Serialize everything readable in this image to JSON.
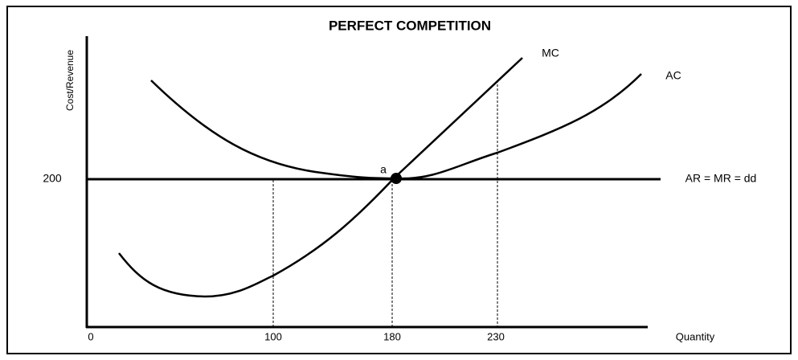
{
  "title": "PERFECT COMPETITION",
  "y_axis_label": "Cost/Revenue",
  "x_axis_label": "Quantity",
  "y_tick_labels": [
    "200"
  ],
  "x_tick_labels": [
    "0",
    "100",
    "180",
    "230"
  ],
  "curves": {
    "mc": "MC",
    "ac": "AC",
    "demand": "AR = MR = dd"
  },
  "point_label": "a"
}
